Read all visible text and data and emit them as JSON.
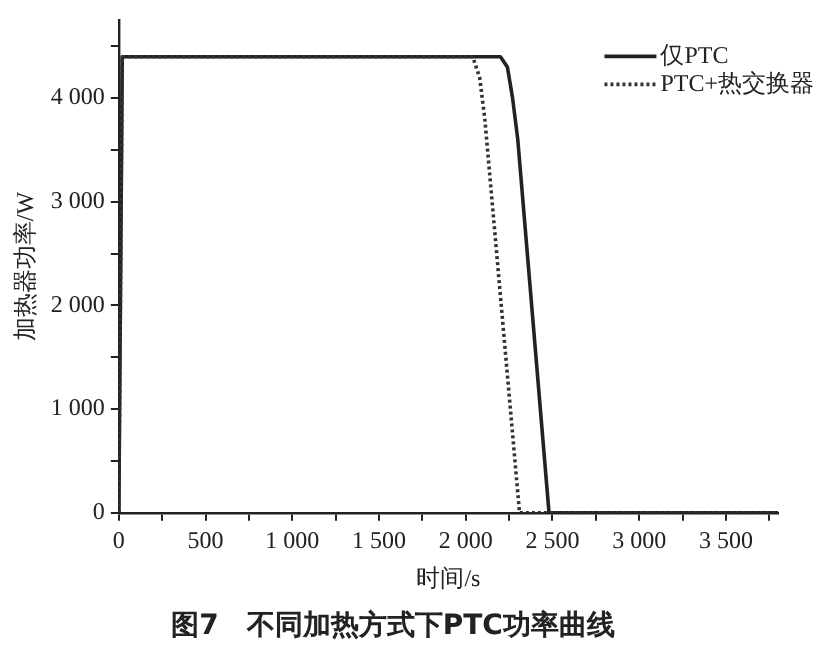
{
  "chart_data": {
    "type": "line",
    "title": "图7　不同加热方式下PTC功率曲线",
    "xlabel": "时间/s",
    "ylabel": "加热器功率/W",
    "xlim": [
      0,
      3800
    ],
    "ylim": [
      0,
      4750
    ],
    "xticks": [
      0,
      {
        "value": 250,
        "label": null
      },
      {
        "value": 500,
        "label": "500"
      },
      {
        "value": 750,
        "label": null
      },
      {
        "value": 1000,
        "label": "1 000"
      },
      {
        "value": 1250,
        "label": null
      },
      {
        "value": 1500,
        "label": "1 500"
      },
      {
        "value": 1750,
        "label": null
      },
      {
        "value": 2000,
        "label": "2 000"
      },
      {
        "value": 2250,
        "label": null
      },
      {
        "value": 2500,
        "label": "2 500"
      },
      {
        "value": 2750,
        "label": null
      },
      {
        "value": 3000,
        "label": "3 000"
      },
      {
        "value": 3250,
        "label": null
      },
      {
        "value": 3500,
        "label": "3 500"
      },
      {
        "value": 3750,
        "label": null
      }
    ],
    "yticks": [
      0,
      {
        "value": 500,
        "label": null
      },
      {
        "value": 1000,
        "label": "1 000"
      },
      {
        "value": 1500,
        "label": null
      },
      {
        "value": 2000,
        "label": "2 000"
      },
      {
        "value": 2500,
        "label": null
      },
      {
        "value": 3000,
        "label": "3 000"
      },
      {
        "value": 3500,
        "label": null
      },
      {
        "value": 4000,
        "label": "4 000"
      },
      {
        "value": 4500,
        "label": null
      }
    ],
    "grid": false,
    "legend": "top right",
    "marker": "none",
    "series": [
      {
        "name": "仅PTC",
        "color": "#222222",
        "line_style": "solid",
        "x": [
          0,
          20,
          2200,
          2240,
          2270,
          2300,
          2480,
          3800
        ],
        "values": [
          0,
          4400,
          4400,
          4300,
          4000,
          3600,
          0,
          0
        ]
      },
      {
        "name": "PTC+热交换器",
        "color": "#333333",
        "line_style": "dotted",
        "x": [
          0,
          20,
          2040,
          2080,
          2110,
          2310,
          3800
        ],
        "values": [
          0,
          4400,
          4400,
          4200,
          3800,
          0,
          0
        ]
      }
    ]
  }
}
